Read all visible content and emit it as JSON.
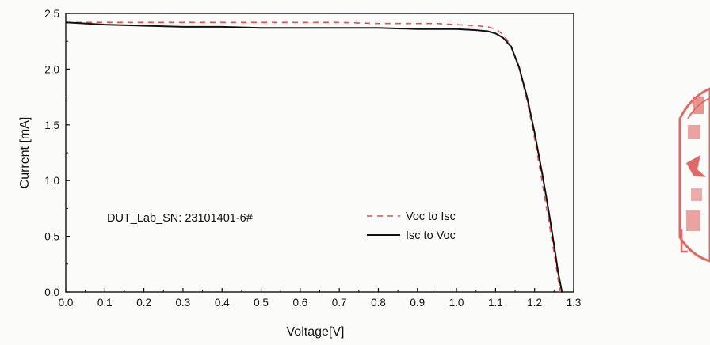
{
  "chart_data": {
    "type": "line",
    "title": "",
    "xlabel": "Voltage[V]",
    "ylabel": "Current [mA]",
    "xlim": [
      0.0,
      1.3
    ],
    "ylim": [
      0.0,
      2.5
    ],
    "x_ticks": [
      "0.0",
      "0.1",
      "0.2",
      "0.3",
      "0.4",
      "0.5",
      "0.6",
      "0.7",
      "0.8",
      "0.9",
      "1.0",
      "1.1",
      "1.2",
      "1.3"
    ],
    "y_ticks": [
      "0.0",
      "0.5",
      "1.0",
      "1.5",
      "2.0",
      "2.5"
    ],
    "grid": false,
    "legend_position": "lower-right (inside plot)",
    "annotation": "DUT_Lab_SN: 23101401-6#",
    "series": [
      {
        "name": "Voc to Isc",
        "style": "dashed",
        "color": "#d9534f",
        "x": [
          0.0,
          0.1,
          0.2,
          0.3,
          0.4,
          0.5,
          0.6,
          0.7,
          0.8,
          0.9,
          0.95,
          1.0,
          1.05,
          1.08,
          1.1,
          1.12,
          1.14,
          1.16,
          1.18,
          1.2,
          1.22,
          1.23,
          1.24,
          1.25,
          1.26,
          1.265
        ],
        "y": [
          2.42,
          2.42,
          2.42,
          2.42,
          2.42,
          2.42,
          2.42,
          2.42,
          2.41,
          2.41,
          2.41,
          2.4,
          2.39,
          2.38,
          2.36,
          2.31,
          2.21,
          2.01,
          1.73,
          1.38,
          0.97,
          0.76,
          0.56,
          0.35,
          0.12,
          0.0
        ]
      },
      {
        "name": "Isc to Voc",
        "style": "solid",
        "color": "#111111",
        "x": [
          0.0,
          0.1,
          0.2,
          0.3,
          0.4,
          0.5,
          0.6,
          0.7,
          0.8,
          0.9,
          0.95,
          1.0,
          1.05,
          1.08,
          1.1,
          1.12,
          1.14,
          1.16,
          1.18,
          1.2,
          1.22,
          1.23,
          1.24,
          1.25,
          1.26,
          1.27
        ],
        "y": [
          2.42,
          2.4,
          2.39,
          2.38,
          2.38,
          2.37,
          2.37,
          2.37,
          2.37,
          2.36,
          2.36,
          2.36,
          2.35,
          2.34,
          2.32,
          2.28,
          2.2,
          2.02,
          1.76,
          1.43,
          1.05,
          0.85,
          0.64,
          0.42,
          0.18,
          0.0
        ]
      }
    ]
  },
  "stamp": {
    "text": "实验室检测专用章",
    "color": "#d94a44"
  }
}
